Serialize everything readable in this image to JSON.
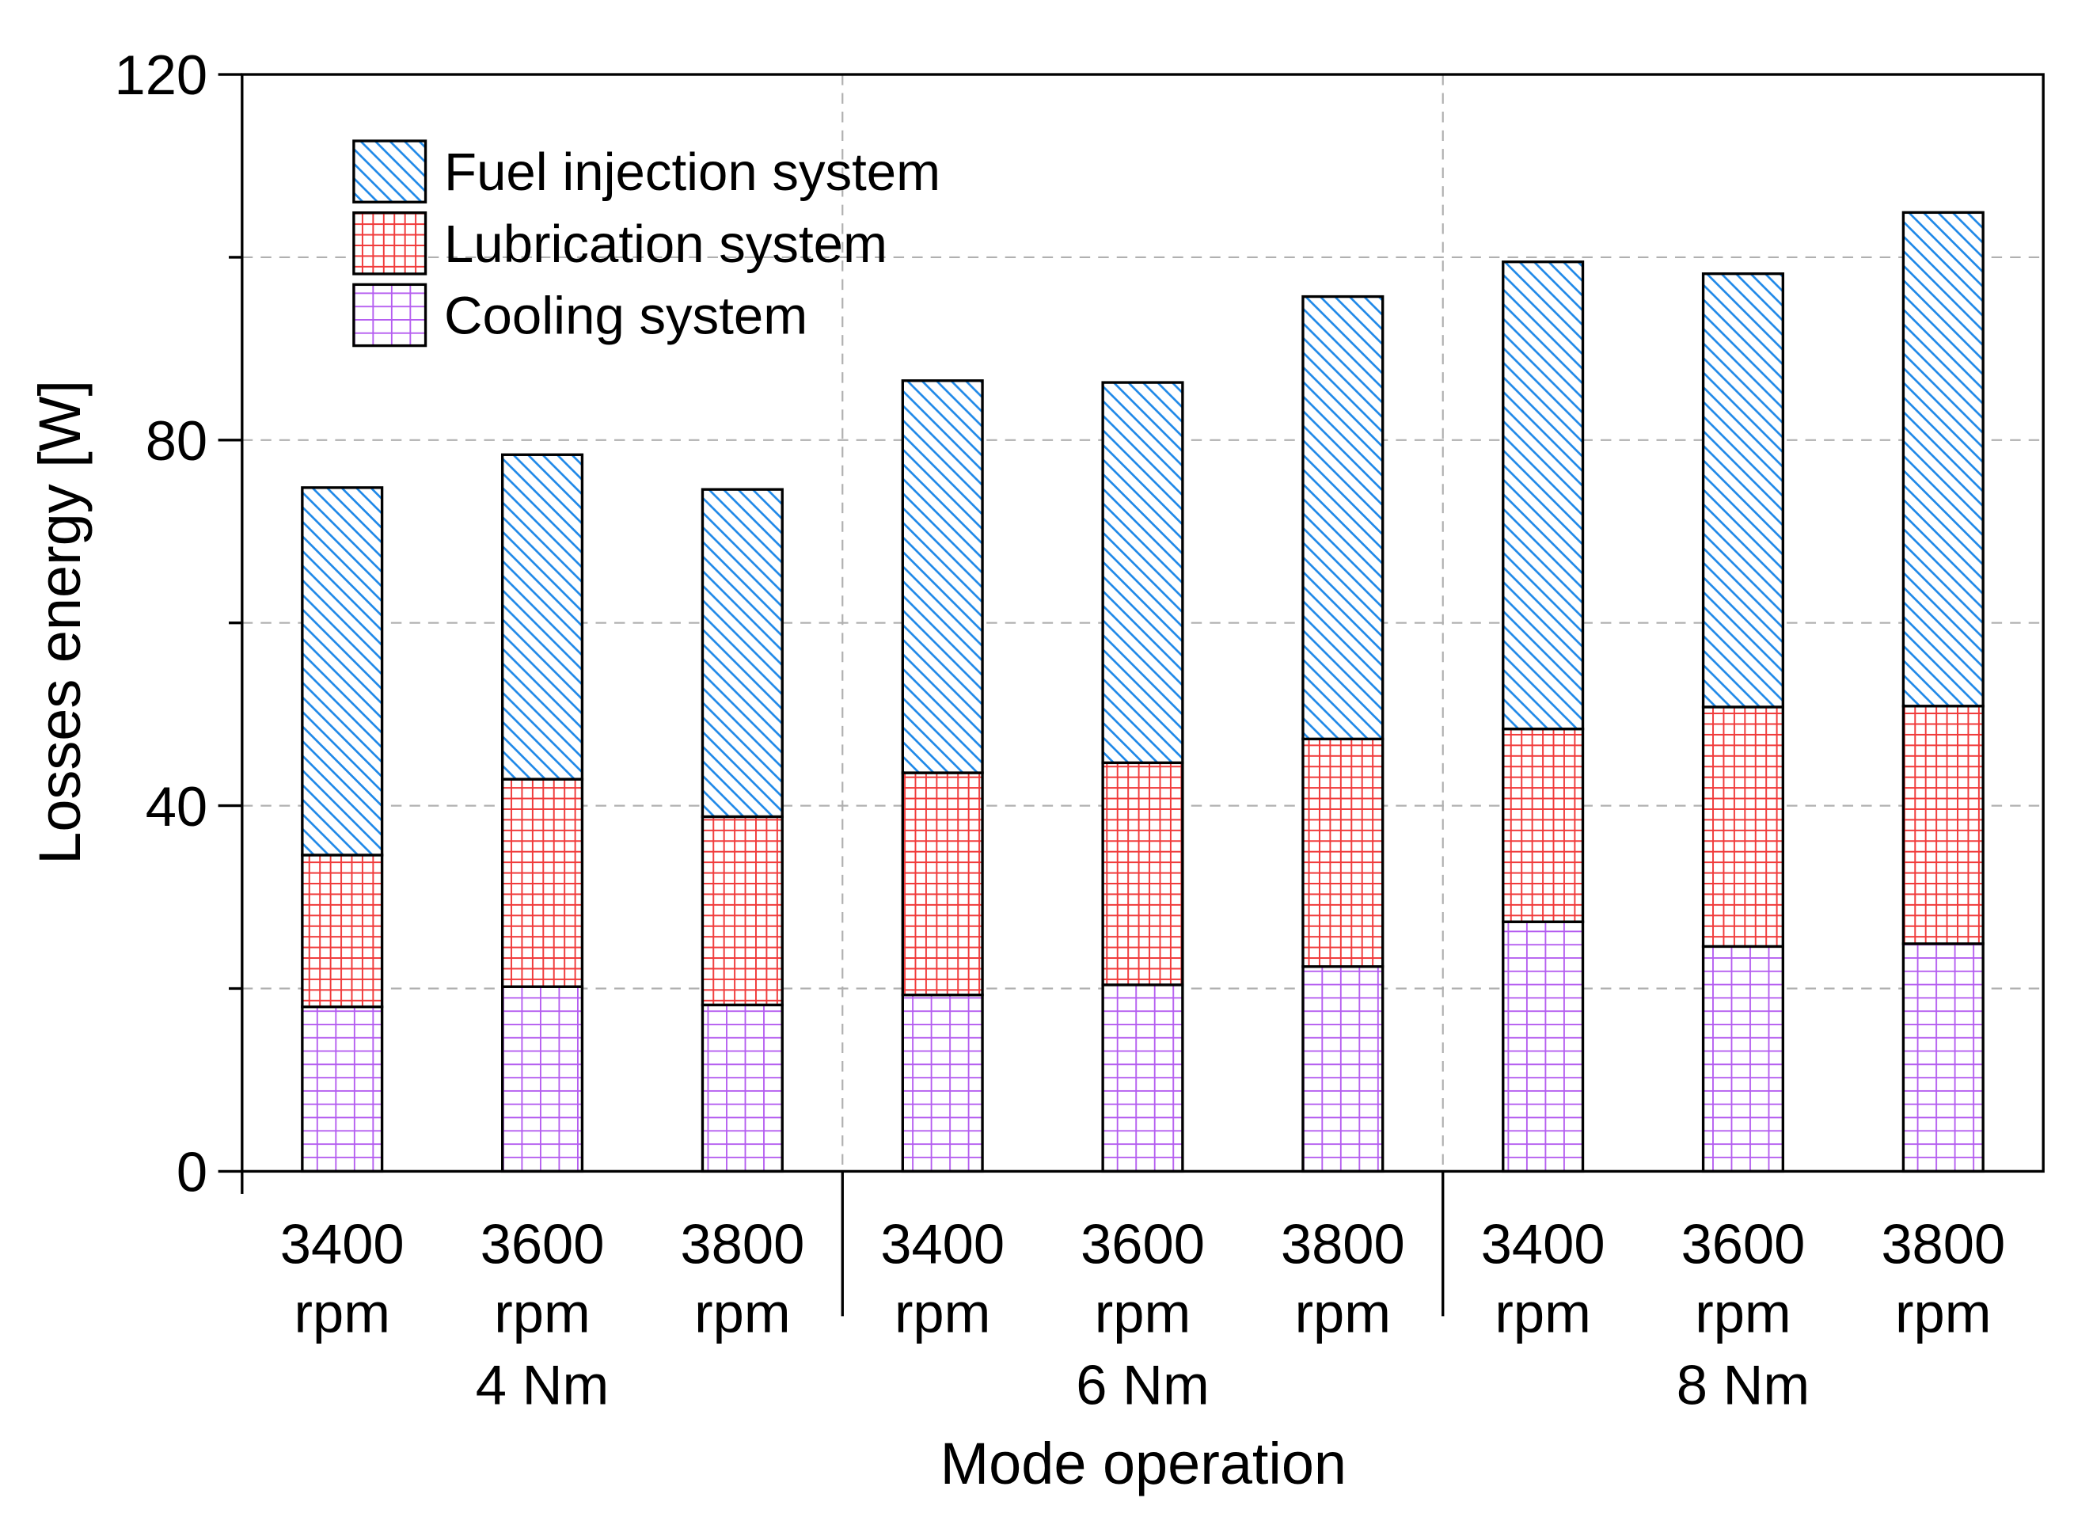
{
  "chart_data": {
    "type": "bar",
    "stacked": true,
    "xlabel": "Mode operation",
    "ylabel": "Losses energy [W]",
    "ylim": [
      0,
      120
    ],
    "yticks": [
      0,
      40,
      80,
      120
    ],
    "yminor": [
      20,
      60,
      100
    ],
    "grid": true,
    "legend_position": "top-left",
    "categories": [
      "3400 rpm",
      "3600 rpm",
      "3800 rpm",
      "3400 rpm",
      "3600 rpm",
      "3800 rpm",
      "3400 rpm",
      "3600 rpm",
      "3800 rpm"
    ],
    "category_lines": [
      [
        "3400",
        "rpm"
      ],
      [
        "3600",
        "rpm"
      ],
      [
        "3800",
        "rpm"
      ],
      [
        "3400",
        "rpm"
      ],
      [
        "3600",
        "rpm"
      ],
      [
        "3800",
        "rpm"
      ],
      [
        "3400",
        "rpm"
      ],
      [
        "3600",
        "rpm"
      ],
      [
        "3800",
        "rpm"
      ]
    ],
    "groups": [
      {
        "label": "4 Nm",
        "members": [
          0,
          1,
          2
        ]
      },
      {
        "label": "6 Nm",
        "members": [
          3,
          4,
          5
        ]
      },
      {
        "label": "8 Nm",
        "members": [
          6,
          7,
          8
        ]
      }
    ],
    "series": [
      {
        "name": "Cooling system",
        "color": "#b45cf0",
        "pattern": "grid-wide",
        "values": [
          18.0,
          20.2,
          18.2,
          19.3,
          20.4,
          22.4,
          27.3,
          24.6,
          24.9
        ]
      },
      {
        "name": "Lubrication system",
        "color": "#f03a3a",
        "pattern": "grid",
        "values": [
          16.6,
          22.7,
          20.6,
          24.3,
          24.3,
          24.9,
          21.1,
          26.2,
          26.0
        ]
      },
      {
        "name": "Fuel injection system",
        "color": "#1e88e8",
        "pattern": "diagonal",
        "values": [
          40.2,
          35.5,
          35.8,
          42.9,
          41.6,
          48.4,
          51.1,
          47.4,
          54.0
        ]
      }
    ],
    "legend_order": [
      2,
      1,
      0
    ]
  }
}
